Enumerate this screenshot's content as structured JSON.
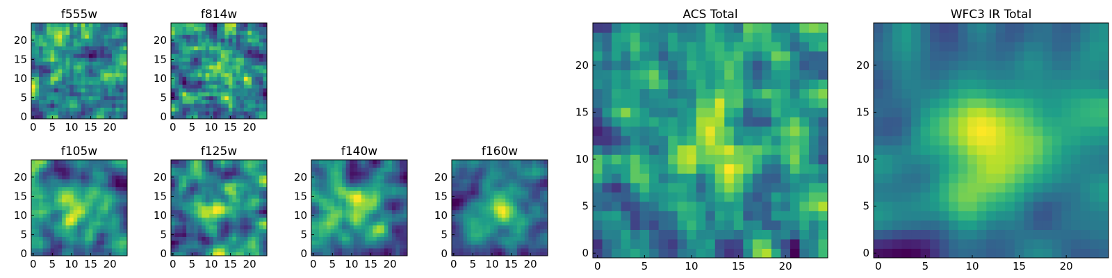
{
  "chart_data": [
    {
      "type": "heatmap",
      "title": "f555w",
      "size": 25,
      "colormap": "viridis",
      "xticks": [
        0,
        5,
        10,
        15,
        20
      ],
      "yticks": [
        0,
        5,
        10,
        15,
        20
      ],
      "smooth": 0.25,
      "seed": 11,
      "peak": [
        12,
        12
      ],
      "peak_strength": 0.0
    },
    {
      "type": "heatmap",
      "title": "f814w",
      "size": 25,
      "colormap": "viridis",
      "xticks": [
        0,
        5,
        10,
        15,
        20
      ],
      "yticks": [
        0,
        5,
        10,
        15,
        20
      ],
      "smooth": 0.35,
      "seed": 23,
      "peak": [
        12,
        12
      ],
      "peak_strength": 0.2
    },
    {
      "type": "heatmap",
      "title": "f105w",
      "size": 25,
      "colormap": "viridis",
      "xticks": [
        0,
        5,
        10,
        15,
        20
      ],
      "yticks": [
        0,
        5,
        10,
        15,
        20
      ],
      "smooth": 0.6,
      "seed": 37,
      "peak": [
        12,
        11
      ],
      "peak_strength": 0.2
    },
    {
      "type": "heatmap",
      "title": "f125w",
      "size": 25,
      "colormap": "viridis",
      "xticks": [
        0,
        5,
        10,
        15,
        20
      ],
      "yticks": [
        0,
        5,
        10,
        15,
        20
      ],
      "smooth": 0.6,
      "seed": 41,
      "peak": [
        12,
        12
      ],
      "peak_strength": 0.15
    },
    {
      "type": "heatmap",
      "title": "f140w",
      "size": 25,
      "colormap": "viridis",
      "xticks": [
        0,
        5,
        10,
        15,
        20
      ],
      "yticks": [
        0,
        5,
        10,
        15,
        20
      ],
      "smooth": 0.6,
      "seed": 53,
      "peak": [
        12,
        12
      ],
      "peak_strength": 0.2
    },
    {
      "type": "heatmap",
      "title": "f160w",
      "size": 25,
      "colormap": "viridis",
      "xticks": [
        0,
        5,
        10,
        15,
        20
      ],
      "yticks": [
        0,
        5,
        10,
        15,
        20
      ],
      "smooth": 0.6,
      "seed": 67,
      "peak": [
        12,
        12
      ],
      "peak_strength": 0.3
    },
    {
      "type": "heatmap",
      "title": "ACS Total",
      "size": 25,
      "colormap": "viridis",
      "xticks": [
        0,
        5,
        10,
        15,
        20
      ],
      "yticks": [
        0,
        5,
        10,
        15,
        20
      ],
      "smooth": 0.3,
      "seed": 79,
      "peak": [
        12,
        12
      ],
      "peak_strength": 0.25
    },
    {
      "type": "heatmap",
      "title": "WFC3 IR Total",
      "size": 25,
      "colormap": "viridis",
      "xticks": [
        0,
        5,
        10,
        15,
        20
      ],
      "yticks": [
        0,
        5,
        10,
        15,
        20
      ],
      "smooth": 0.65,
      "seed": 97,
      "peak": [
        12,
        12
      ],
      "peak_strength": 0.35
    }
  ]
}
